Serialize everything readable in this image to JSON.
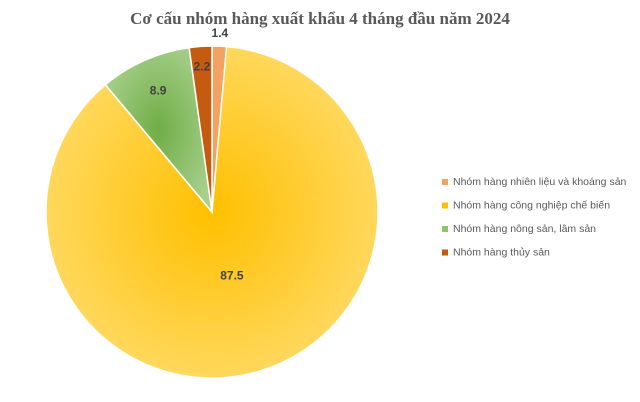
{
  "chart_data": {
    "type": "pie",
    "title": "Cơ cấu nhóm hàng xuất khẩu 4 tháng đầu năm 2024",
    "categories": [
      "Nhóm hàng nhiên liệu và khoáng sản",
      "Nhóm hàng công nghiệp chế biến",
      "Nhóm hàng nông sản, lâm sản",
      "Nhóm hàng thủy sản"
    ],
    "values": [
      1.4,
      87.5,
      8.9,
      2.2
    ],
    "colors": [
      "#F4A261",
      "#FFC000",
      "#8CC56A",
      "#C55A11"
    ],
    "legend": "right"
  }
}
